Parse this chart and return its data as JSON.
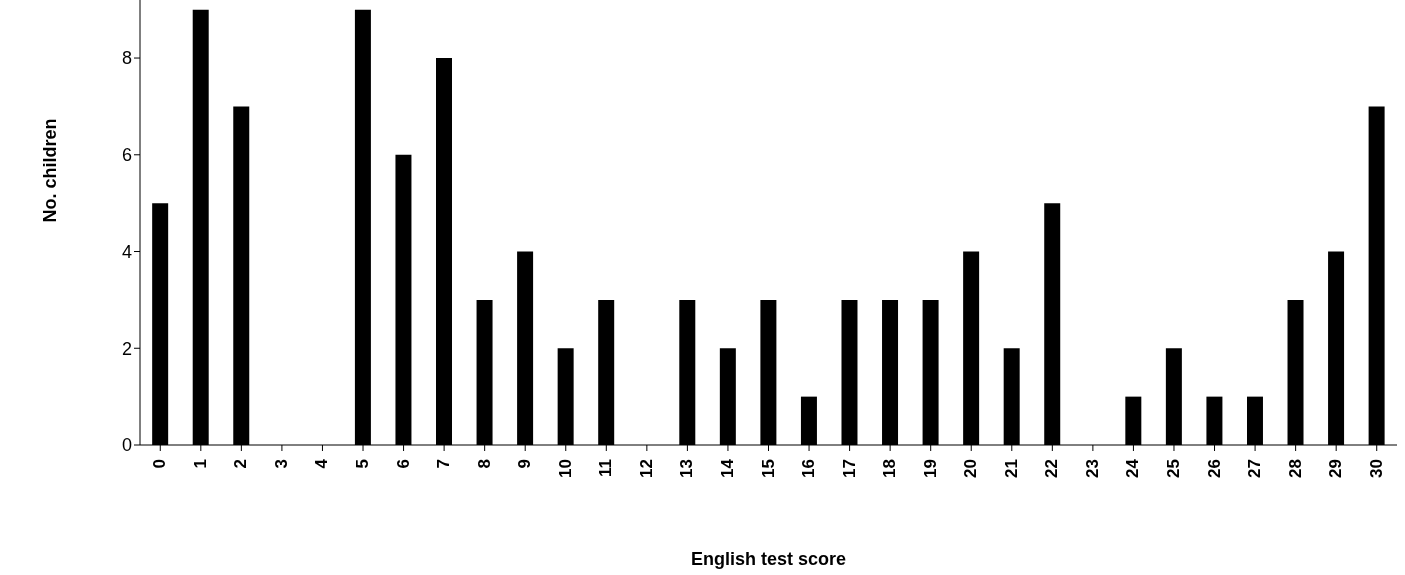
{
  "chart_data": {
    "type": "bar",
    "xlabel": "English test score",
    "ylabel": "No. children",
    "categories": [
      "0",
      "1",
      "2",
      "3",
      "4",
      "5",
      "6",
      "7",
      "8",
      "9",
      "10",
      "11",
      "12",
      "13",
      "14",
      "15",
      "16",
      "17",
      "18",
      "19",
      "20",
      "21",
      "22",
      "23",
      "24",
      "25",
      "26",
      "27",
      "28",
      "29",
      "30"
    ],
    "values": [
      5,
      9,
      7,
      null,
      null,
      9,
      6,
      8,
      3,
      4,
      2,
      3,
      0,
      3,
      2,
      3,
      1,
      3,
      3,
      3,
      4,
      2,
      5,
      0,
      1,
      2,
      1,
      1,
      3,
      4,
      7
    ],
    "color": "#000000",
    "ylim": [
      0,
      9.2
    ],
    "yticks": [
      0,
      2,
      4,
      6,
      8
    ],
    "grid": false,
    "legend": false
  }
}
